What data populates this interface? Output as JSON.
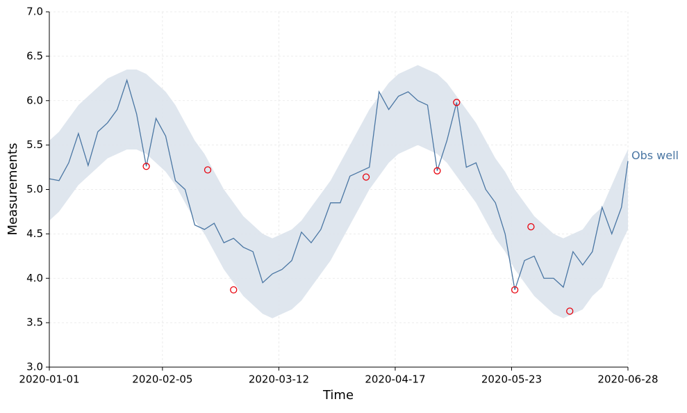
{
  "chart_data": {
    "type": "line",
    "xlabel": "Time",
    "ylabel": "Measurements",
    "grid": true,
    "xlim": [
      "2020-01-01",
      "2020-06-28"
    ],
    "xticks": [
      "2020-01-01",
      "2020-02-05",
      "2020-03-12",
      "2020-04-17",
      "2020-05-23",
      "2020-06-28"
    ],
    "ylim": [
      3.0,
      7.0
    ],
    "yticks": [
      {
        "value": 3,
        "label": "3.0"
      },
      {
        "value": 3.5,
        "label": "3.5"
      },
      {
        "value": 4,
        "label": "4.0"
      },
      {
        "value": 4.5,
        "label": "4.5"
      },
      {
        "value": 5,
        "label": "5.0"
      },
      {
        "value": 5.5,
        "label": "5.5"
      },
      {
        "value": 6,
        "label": "6.0"
      },
      {
        "value": 6.5,
        "label": "6.5"
      },
      {
        "value": 7,
        "label": "7.0"
      }
    ],
    "x": [
      "2020-01-01",
      "2020-01-04",
      "2020-01-07",
      "2020-01-10",
      "2020-01-13",
      "2020-01-16",
      "2020-01-19",
      "2020-01-22",
      "2020-01-25",
      "2020-01-28",
      "2020-01-31",
      "2020-02-03",
      "2020-02-06",
      "2020-02-09",
      "2020-02-12",
      "2020-02-15",
      "2020-02-18",
      "2020-02-21",
      "2020-02-24",
      "2020-02-27",
      "2020-03-01",
      "2020-03-04",
      "2020-03-07",
      "2020-03-10",
      "2020-03-13",
      "2020-03-16",
      "2020-03-19",
      "2020-03-22",
      "2020-03-25",
      "2020-03-28",
      "2020-03-31",
      "2020-04-03",
      "2020-04-06",
      "2020-04-09",
      "2020-04-12",
      "2020-04-15",
      "2020-04-18",
      "2020-04-21",
      "2020-04-24",
      "2020-04-27",
      "2020-04-30",
      "2020-05-03",
      "2020-05-06",
      "2020-05-09",
      "2020-05-12",
      "2020-05-15",
      "2020-05-18",
      "2020-05-21",
      "2020-05-24",
      "2020-05-27",
      "2020-05-30",
      "2020-06-02",
      "2020-06-05",
      "2020-06-08",
      "2020-06-11",
      "2020-06-14",
      "2020-06-17",
      "2020-06-20",
      "2020-06-23",
      "2020-06-26",
      "2020-06-28"
    ],
    "series": [
      {
        "name": "Obs well",
        "color": "#4a76a3",
        "band_color": "#dbe3ec",
        "values": [
          5.12,
          5.1,
          5.3,
          5.63,
          5.27,
          5.65,
          5.75,
          5.9,
          6.23,
          5.85,
          5.26,
          5.8,
          5.6,
          5.1,
          5.0,
          4.6,
          4.55,
          4.62,
          4.4,
          4.45,
          4.35,
          4.3,
          3.95,
          4.05,
          4.1,
          4.2,
          4.52,
          4.4,
          4.55,
          4.85,
          4.85,
          5.15,
          5.2,
          5.25,
          6.1,
          5.9,
          6.05,
          6.1,
          6.0,
          5.95,
          5.21,
          5.55,
          5.98,
          5.25,
          5.3,
          5.0,
          4.85,
          4.5,
          3.87,
          4.2,
          4.25,
          4.0,
          4.0,
          3.9,
          4.3,
          4.15,
          4.3,
          4.8,
          4.5,
          4.8,
          5.32
        ],
        "upper": [
          5.55,
          5.65,
          5.8,
          5.95,
          6.05,
          6.15,
          6.25,
          6.3,
          6.35,
          6.35,
          6.3,
          6.2,
          6.1,
          5.95,
          5.75,
          5.55,
          5.4,
          5.2,
          5.0,
          4.85,
          4.7,
          4.6,
          4.5,
          4.45,
          4.5,
          4.55,
          4.65,
          4.8,
          4.95,
          5.1,
          5.3,
          5.5,
          5.7,
          5.9,
          6.05,
          6.2,
          6.3,
          6.35,
          6.4,
          6.35,
          6.3,
          6.2,
          6.05,
          5.9,
          5.75,
          5.55,
          5.35,
          5.2,
          5.0,
          4.85,
          4.7,
          4.6,
          4.5,
          4.45,
          4.5,
          4.55,
          4.7,
          4.8,
          5.05,
          5.3,
          5.45
        ],
        "lower": [
          4.65,
          4.75,
          4.9,
          5.05,
          5.15,
          5.25,
          5.35,
          5.4,
          5.45,
          5.45,
          5.4,
          5.3,
          5.2,
          5.05,
          4.85,
          4.65,
          4.5,
          4.3,
          4.1,
          3.95,
          3.8,
          3.7,
          3.6,
          3.55,
          3.6,
          3.65,
          3.75,
          3.9,
          4.05,
          4.2,
          4.4,
          4.6,
          4.8,
          5.0,
          5.15,
          5.3,
          5.4,
          5.45,
          5.5,
          5.45,
          5.4,
          5.3,
          5.15,
          5.0,
          4.85,
          4.65,
          4.45,
          4.3,
          4.1,
          3.95,
          3.8,
          3.7,
          3.6,
          3.55,
          3.6,
          3.65,
          3.8,
          3.9,
          4.15,
          4.4,
          4.55
        ]
      }
    ],
    "outliers": {
      "color": "#e8000b",
      "x": [
        "2020-01-31",
        "2020-02-19",
        "2020-02-27",
        "2020-04-08",
        "2020-04-30",
        "2020-05-06",
        "2020-05-24",
        "2020-05-29",
        "2020-06-10"
      ],
      "values": [
        5.26,
        5.22,
        3.87,
        5.14,
        5.21,
        5.98,
        3.87,
        4.58,
        3.63
      ]
    }
  }
}
